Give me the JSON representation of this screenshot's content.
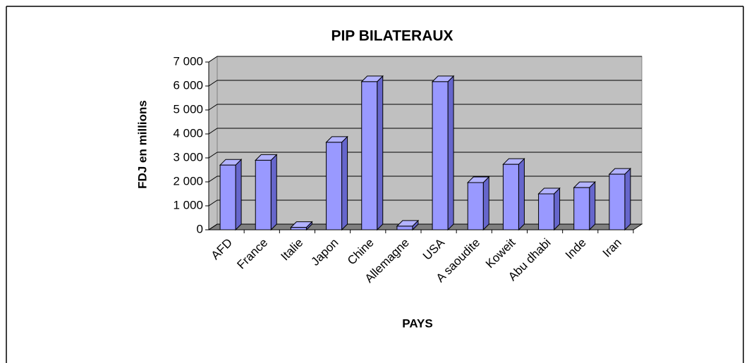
{
  "chart_data": {
    "type": "bar3d",
    "title": "PIP BILATERAUX",
    "x_label": "PAYS",
    "y_label": "FDJ en millions",
    "categories": [
      "AFD",
      "France",
      "Italie",
      "Japon",
      "Chine",
      "Allemagne",
      "USA",
      "A saoudite",
      "Koweit",
      "Abu dhabi",
      "Inde",
      "Iran"
    ],
    "values": [
      2700,
      2900,
      100,
      3650,
      6180,
      150,
      6180,
      1970,
      2730,
      1500,
      1760,
      2320
    ],
    "color": "#9999ff",
    "ylim": [
      0,
      7000
    ],
    "yticks": [
      0,
      {
        "value": 1000,
        "label": "1 000"
      },
      {
        "value": 2000,
        "label": "2 000"
      },
      {
        "value": 3000,
        "label": "3 000"
      },
      {
        "value": 4000,
        "label": "4 000"
      },
      {
        "value": 5000,
        "label": "5 000"
      },
      {
        "value": 6000,
        "label": "6 000"
      },
      {
        "value": 7000,
        "label": "7 000"
      }
    ],
    "grid": true
  }
}
